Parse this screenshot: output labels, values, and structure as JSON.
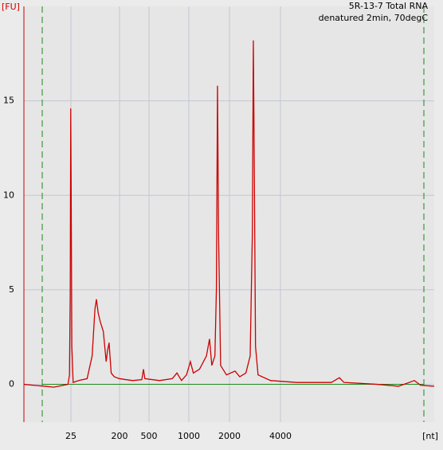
{
  "chart_data": {
    "type": "line",
    "title": "5R-13-7 Total RNA",
    "subtitle": "denatured 2min, 70degC",
    "y_label": "[FU]",
    "x_label": "[nt]",
    "x": [
      3.3,
      5,
      8,
      12,
      18,
      22,
      23.5,
      24.3,
      24.8,
      25.3,
      26,
      27.5,
      35,
      50,
      62,
      70,
      74.5,
      80,
      88,
      100,
      108,
      113,
      120,
      128,
      133,
      140,
      160,
      200,
      300,
      400,
      421,
      440,
      600,
      750,
      813,
      880,
      960,
      1027,
      1080,
      1200,
      1350,
      1423,
      1480,
      1560,
      1600,
      1631,
      1660,
      1720,
      1900,
      2157,
      2300,
      2500,
      2650,
      2730,
      2767,
      2800,
      2850,
      2950,
      3500,
      5000,
      8000,
      8930,
      9500,
      15000,
      20000,
      24800,
      27000,
      32500
    ],
    "series": [
      {
        "color": "#cc0000",
        "values": [
          0.0,
          -0.05,
          -0.1,
          -0.15,
          -0.05,
          0.0,
          0.5,
          5,
          14.6,
          10,
          2,
          0.1,
          0.2,
          0.3,
          1.5,
          4.0,
          4.5,
          3.8,
          3.3,
          2.8,
          1.8,
          1.2,
          1.8,
          2.2,
          1.5,
          0.6,
          0.4,
          0.3,
          0.2,
          0.25,
          0.8,
          0.3,
          0.2,
          0.3,
          0.6,
          0.2,
          0.5,
          1.2,
          0.6,
          0.8,
          1.5,
          2.4,
          1.0,
          1.5,
          5,
          15.8,
          8,
          1.0,
          0.5,
          0.7,
          0.4,
          0.6,
          1.5,
          8,
          18.2,
          12,
          2,
          0.5,
          0.2,
          0.1,
          0.1,
          0.35,
          0.1,
          0.0,
          -0.1,
          0.2,
          -0.05,
          -0.1
        ]
      }
    ],
    "xlim": [
      3.3,
      32500
    ],
    "xticks": [
      25,
      200,
      500,
      1000,
      2000,
      4000
    ],
    "ylim": [
      -2,
      20
    ],
    "yticks": [
      0,
      5,
      10,
      15
    ],
    "grid": true
  }
}
